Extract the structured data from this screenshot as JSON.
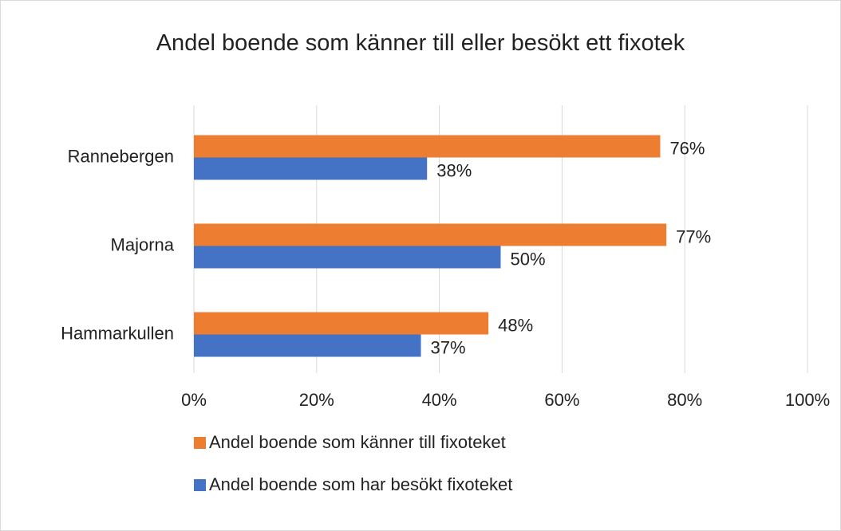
{
  "chart_data": {
    "type": "hbar",
    "title": "Andel boende som känner till eller besökt ett fixotek",
    "categories": [
      "Rannebergen",
      "Majorna",
      "Hammarkullen"
    ],
    "series": [
      {
        "name": "Andel boende som känner till fixoteket",
        "color": "#ed7d31",
        "values": [
          76,
          77,
          48
        ],
        "value_labels": [
          "76%",
          "77%",
          "48%"
        ]
      },
      {
        "name": "Andel boende som har besökt fixoteket",
        "color": "#4472c4",
        "values": [
          38,
          50,
          37
        ],
        "value_labels": [
          "38%",
          "50%",
          "37%"
        ]
      }
    ],
    "xlim": [
      0,
      100
    ],
    "xticks": [
      {
        "value": 0,
        "label": "0%"
      },
      {
        "value": 20,
        "label": "20%"
      },
      {
        "value": 40,
        "label": "40%"
      },
      {
        "value": 60,
        "label": "60%"
      },
      {
        "value": 80,
        "label": "80%"
      },
      {
        "value": 100,
        "label": "100%"
      }
    ],
    "grid": true,
    "legend": "bottom"
  }
}
